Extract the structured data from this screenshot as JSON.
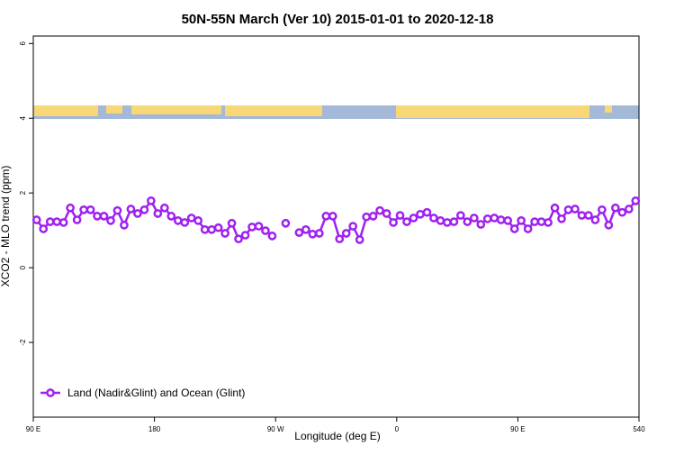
{
  "chart_data": {
    "type": "line",
    "title": "50N-55N March (Ver 10)   2015-01-01 to 2020-12-18",
    "x_label": "Longitude (deg E)",
    "y_label": "XCO2 - MLO trend (ppm)",
    "xlim": [
      90,
      540
    ],
    "ylim": [
      -4,
      6.2
    ],
    "xticks": [
      {
        "value": 90,
        "label": "90 E"
      },
      180,
      {
        "value": 270,
        "label": "90 W"
      },
      {
        "value": 360,
        "label": "0"
      },
      {
        "value": 450,
        "label": "90 E"
      },
      540
    ],
    "yticks": [
      -2,
      0,
      2,
      4,
      6
    ],
    "legend": "bottom-left",
    "x": [
      92.5,
      97.5,
      102.5,
      107.5,
      112.5,
      117.5,
      122.5,
      127.5,
      132.5,
      137.5,
      142.5,
      147.5,
      152.5,
      157.5,
      162.5,
      167.5,
      172.5,
      177.5,
      182.5,
      187.5,
      192.5,
      197.5,
      202.5,
      207.5,
      212.5,
      217.5,
      222.5,
      227.5,
      232.5,
      237.5,
      242.5,
      247.5,
      252.5,
      257.5,
      262.5,
      267.5,
      272.5,
      277.5,
      282.5,
      287.5,
      292.5,
      297.5,
      302.5,
      307.5,
      312.5,
      317.5,
      322.5,
      327.5,
      332.5,
      337.5,
      342.5,
      347.5,
      352.5,
      357.5,
      362.5,
      367.5,
      372.5,
      377.5,
      382.5,
      387.5,
      392.5,
      397.5,
      402.5,
      407.5,
      412.5,
      417.5,
      422.5,
      427.5,
      432.5,
      437.5,
      442.5,
      447.5,
      452.5,
      457.5,
      462.5,
      467.5,
      472.5,
      477.5,
      482.5,
      487.5,
      492.5,
      497.5,
      502.5,
      507.5,
      512.5,
      517.5,
      522.5,
      527.5,
      532.5,
      537.5
    ],
    "series": [
      {
        "name": "Land (Nadir&Glint) and Ocean (Glint)",
        "color": "#a020f0",
        "values": [
          1.28,
          1.04,
          1.23,
          1.23,
          1.21,
          1.6,
          1.28,
          1.55,
          1.55,
          1.38,
          1.38,
          1.26,
          1.53,
          1.14,
          1.57,
          1.45,
          1.55,
          1.79,
          1.45,
          1.6,
          1.38,
          1.26,
          1.21,
          1.33,
          1.26,
          1.02,
          1.02,
          1.07,
          0.92,
          1.19,
          0.77,
          0.87,
          1.09,
          1.11,
          0.99,
          0.85,
          null,
          1.19,
          null,
          0.94,
          1.02,
          0.9,
          0.92,
          1.38,
          1.38,
          0.77,
          0.92,
          1.11,
          0.75,
          1.36,
          1.38,
          1.53,
          1.45,
          1.21,
          1.4,
          1.23,
          1.33,
          1.43,
          1.48,
          1.33,
          1.26,
          1.21,
          1.23,
          1.4,
          1.23,
          1.33,
          1.16,
          1.31,
          1.33,
          1.28,
          1.26,
          1.04,
          1.26,
          1.04,
          1.23,
          1.23,
          1.21,
          1.6,
          1.31,
          1.55,
          1.57,
          1.4,
          1.4,
          1.28,
          1.55,
          1.14,
          1.6,
          1.48,
          1.57,
          1.79
        ]
      }
    ]
  }
}
